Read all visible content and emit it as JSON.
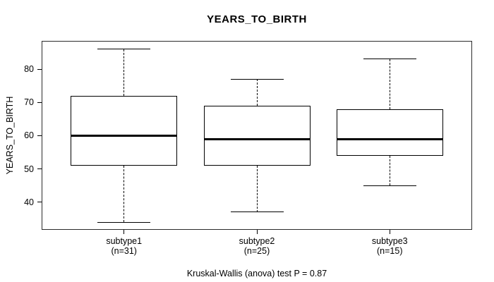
{
  "title": "YEARS_TO_BIRTH",
  "y_axis": {
    "label": "YEARS_TO_BIRTH",
    "ticks": [
      40,
      50,
      60,
      70,
      80
    ]
  },
  "footer": "Kruskal-Wallis (anova) test P = 0.87",
  "chart_data": {
    "type": "boxplot",
    "title": "YEARS_TO_BIRTH",
    "xlabel": "",
    "ylabel": "YEARS_TO_BIRTH",
    "ylim": [
      31.7,
      88.5
    ],
    "yticks": [
      40,
      50,
      60,
      70,
      80
    ],
    "grid": false,
    "legend": "none",
    "annotation": "Kruskal-Wallis (anova) test P = 0.87",
    "categories": [
      "subtype1",
      "subtype2",
      "subtype3"
    ],
    "groups": [
      {
        "label": "subtype1",
        "n_label": "(n=31)",
        "n": 31,
        "whisker_low": 34,
        "q1": 51,
        "median": 60,
        "q3": 72,
        "whisker_high": 86,
        "outliers": []
      },
      {
        "label": "subtype2",
        "n_label": "(n=25)",
        "n": 25,
        "whisker_low": 37,
        "q1": 51,
        "median": 59,
        "q3": 69,
        "whisker_high": 77,
        "outliers": []
      },
      {
        "label": "subtype3",
        "n_label": "(n=15)",
        "n": 15,
        "whisker_low": 45,
        "q1": 54,
        "median": 59,
        "q3": 68,
        "whisker_high": 83,
        "outliers": []
      }
    ],
    "colors": {
      "line": "#000000",
      "box_fill": "#ffffff",
      "background": "#ffffff"
    }
  }
}
